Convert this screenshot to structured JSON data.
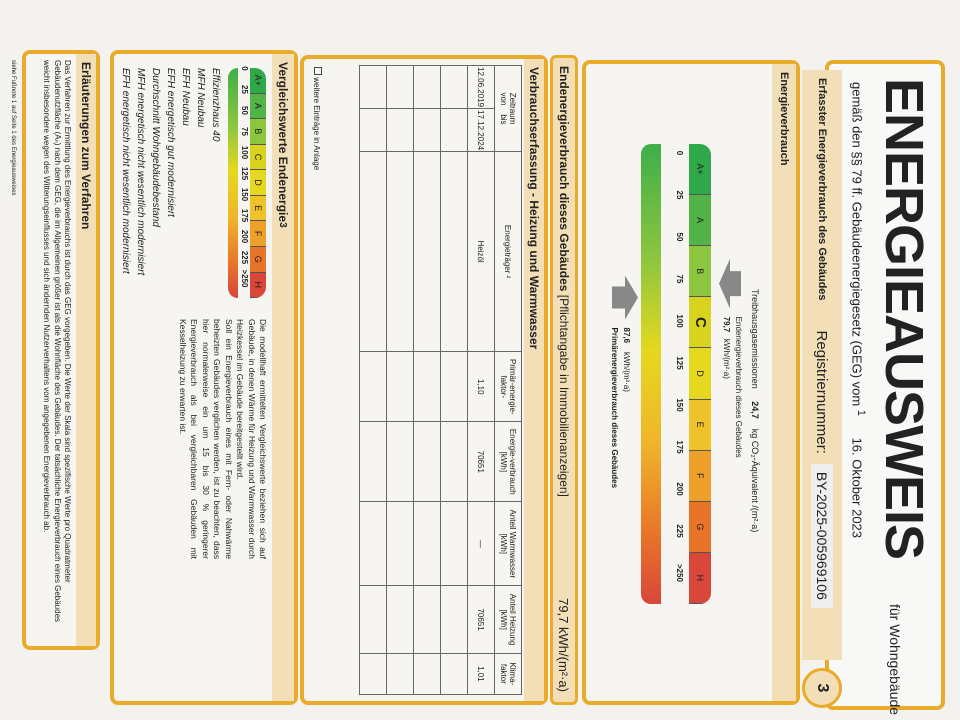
{
  "header": {
    "title": "ENERGIEAUSWEIS",
    "subtitle": "für Wohngebäude",
    "law": "gemäß den §§ 79 ff. Gebäudeenergiegesetz (GEG) vom",
    "footnote_mark": "1",
    "date": "16. Oktober 2023"
  },
  "band": {
    "label": "Erfasster Energieverbrauch des Gebäudes",
    "reg_label": "Registriernummer:",
    "reg_value": "BY-2025-005969106",
    "page": "3"
  },
  "energy": {
    "title": "Energieverbrauch",
    "ghg_label": "Treibhausgasemissionen",
    "ghg_value": "24,7",
    "ghg_unit": "kg CO₂-Äquivalent /(m²·a)",
    "classes": [
      "A+",
      "A",
      "B",
      "C",
      "D",
      "E",
      "F",
      "G",
      "H"
    ],
    "ticks": [
      "0",
      "25",
      "50",
      "75",
      "100",
      "125",
      "150",
      "175",
      "200",
      "225",
      ">250"
    ],
    "end_label": "Endenergieverbrauch dieses Gebäudes",
    "end_value": "79,7",
    "end_unit": "kWh/(m²·a)",
    "prim_label": "Primärenergieverbrauch dieses Gebäudes",
    "prim_value": "87,6",
    "prim_unit": "kWh/(m²·a)",
    "active_class": "C",
    "end_numeric": 79.7,
    "prim_numeric": 87.6
  },
  "endbar": {
    "label": "Endenergieverbrauch dieses Gebäudes",
    "note": "[Pflichtangabe in Immobilienanzeigen]",
    "value": "79,7 kWh/(m²·a)"
  },
  "table": {
    "title": "Verbrauchserfassung - Heizung und Warmwasser",
    "headers": {
      "zeitraum": "Zeitraum",
      "von": "von",
      "bis": "bis",
      "traeger": "Energieträger ²",
      "pef": "Primär-energie-faktor-",
      "verbrauch": "Energie-verbrauch [kWh]",
      "ww": "Anteil Warmwasser [kWh]",
      "heiz": "Anteil Heizung [kWh]",
      "klima": "Klima-faktor"
    },
    "rows": [
      {
        "von": "12.06.2019",
        "bis": "17.12.2024",
        "traeger": "Heizöl",
        "pef": "1,10",
        "verbrauch": "70651",
        "ww": "—",
        "heiz": "70651",
        "klima": "1,01"
      }
    ],
    "more": "weitere Einträge in Anlage"
  },
  "compare": {
    "title": "Vergleichswerte Endenergie",
    "sup": "3",
    "labels": [
      "Effizienzhaus 40",
      "MFH Neubau",
      "EFH Neubau",
      "EFH energetisch gut modernisiert",
      "Durchschnitt Wohngebäudebestand",
      "MFH energetisch nicht wesentlich modernisiert",
      "EFH energetisch nicht wesentlich modernisiert"
    ],
    "text1": "Die modellhaft ermittelten Vergleichswerte beziehen sich auf Gebäude, in denen Wärme für Heizung und Warmwasser durch Heizkessel im Gebäude bereitgestellt wird.",
    "text2": "Soll ein Energieverbrauch eines mit Fern- oder Nahwärme beheizten Gebäudes verglichen werden, ist zu beachten, dass hier normalerweise ein um 15 bis 30 % geringerer Energieverbrauch als bei vergleichbaren Gebäuden mit Kesselheizung zu erwarten ist."
  },
  "explain": {
    "title": "Erläuterungen zum Verfahren",
    "text": "Das Verfahren zur Ermittlung des Energieverbrauchs ist durch das GEG vorgegeben. Die Werte der Skala sind spezifische Werte pro Quadratmeter Gebäudenutzfläche (Aₙ) nach dem GEG, die im Allgemeinen größer ist als die Wohnfläche des Gebäudes. Der tatsächliche Energieverbrauch eines Gebäudes weicht insbesondere wegen des Witterungseinflusses und sich ändernden Nutzerverhaltens vom angegebenen Energieverbrauch ab."
  },
  "footnotes": [
    "siehe Fußnote 1 auf Seite 1 des Energieausweises"
  ]
}
